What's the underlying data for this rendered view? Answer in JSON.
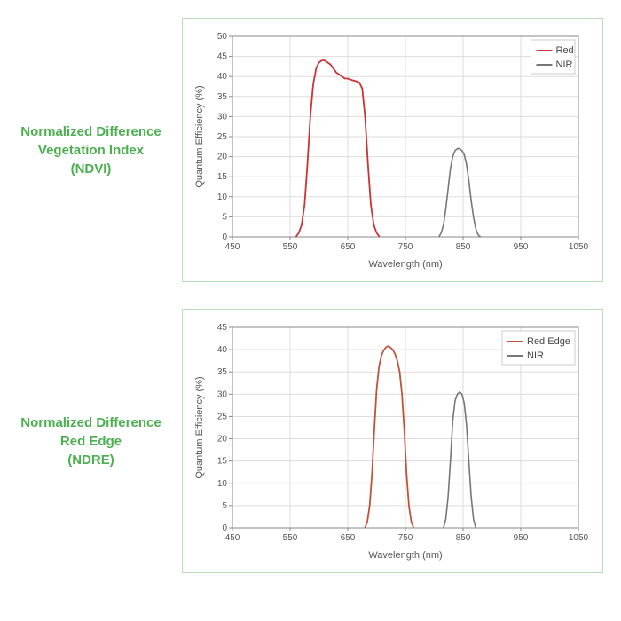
{
  "charts": [
    {
      "label_lines": [
        "Normalized Difference",
        "Vegetation Index",
        "(NDVI)"
      ],
      "label_color": "#4caf50",
      "border_color": "#b7e0b7",
      "background_color": "#ffffff",
      "xlabel": "Wavelength (nm)",
      "ylabel": "Quantum Efficiency (%)",
      "xlim": [
        450,
        1050
      ],
      "ylim": [
        0,
        50
      ],
      "xtick_step": 100,
      "ytick_step": 5,
      "grid_color": "#dddddd",
      "axis_color": "#888888",
      "tick_font_size": 10,
      "axis_title_font_size": 11,
      "legend": {
        "items": [
          {
            "name": "Red",
            "color": "#cc3333"
          },
          {
            "name": "NIR",
            "color": "#777777"
          }
        ]
      },
      "series": [
        {
          "name": "Red",
          "color": "#cc3333",
          "line_width": 1.8,
          "points": [
            [
              560,
              0
            ],
            [
              565,
              1
            ],
            [
              570,
              3
            ],
            [
              575,
              8
            ],
            [
              580,
              18
            ],
            [
              585,
              30
            ],
            [
              590,
              38
            ],
            [
              595,
              42
            ],
            [
              600,
              43.5
            ],
            [
              605,
              44
            ],
            [
              610,
              44
            ],
            [
              615,
              43.5
            ],
            [
              620,
              43
            ],
            [
              625,
              42
            ],
            [
              630,
              41
            ],
            [
              635,
              40.5
            ],
            [
              640,
              40
            ],
            [
              645,
              39.5
            ],
            [
              650,
              39.5
            ],
            [
              655,
              39.2
            ],
            [
              660,
              39
            ],
            [
              665,
              38.8
            ],
            [
              670,
              38.5
            ],
            [
              675,
              37
            ],
            [
              680,
              30
            ],
            [
              685,
              18
            ],
            [
              690,
              8
            ],
            [
              695,
              3
            ],
            [
              700,
              1
            ],
            [
              705,
              0
            ]
          ]
        },
        {
          "name": "NIR",
          "color": "#777777",
          "line_width": 1.6,
          "points": [
            [
              808,
              0
            ],
            [
              812,
              1
            ],
            [
              816,
              3
            ],
            [
              820,
              7
            ],
            [
              824,
              12
            ],
            [
              828,
              17
            ],
            [
              832,
              20
            ],
            [
              836,
              21.5
            ],
            [
              840,
              22
            ],
            [
              844,
              22
            ],
            [
              848,
              21.5
            ],
            [
              852,
              20.5
            ],
            [
              856,
              18
            ],
            [
              860,
              14
            ],
            [
              864,
              9
            ],
            [
              868,
              5
            ],
            [
              872,
              2
            ],
            [
              876,
              0.5
            ],
            [
              880,
              0
            ]
          ]
        }
      ]
    },
    {
      "label_lines": [
        "Normalized Difference",
        "Red Edge",
        "(NDRE)"
      ],
      "label_color": "#4caf50",
      "border_color": "#b7e0b7",
      "background_color": "#ffffff",
      "xlabel": "Wavelength (nm)",
      "ylabel": "Quantum Efficiency (%)",
      "xlim": [
        450,
        1050
      ],
      "ylim": [
        0,
        45
      ],
      "xtick_step": 100,
      "ytick_step": 5,
      "grid_color": "#dddddd",
      "axis_color": "#888888",
      "tick_font_size": 10,
      "axis_title_font_size": 11,
      "legend": {
        "items": [
          {
            "name": "Red Edge",
            "color": "#c0543a"
          },
          {
            "name": "NIR",
            "color": "#777777"
          }
        ]
      },
      "series": [
        {
          "name": "Red Edge",
          "color": "#c0543a",
          "line_width": 1.8,
          "points": [
            [
              680,
              0
            ],
            [
              684,
              1.5
            ],
            [
              688,
              5
            ],
            [
              692,
              12
            ],
            [
              696,
              22
            ],
            [
              700,
              31
            ],
            [
              704,
              36
            ],
            [
              708,
              38.5
            ],
            [
              712,
              39.8
            ],
            [
              716,
              40.5
            ],
            [
              720,
              40.8
            ],
            [
              724,
              40.5
            ],
            [
              728,
              40
            ],
            [
              732,
              39
            ],
            [
              736,
              37.5
            ],
            [
              740,
              35
            ],
            [
              744,
              30
            ],
            [
              748,
              22
            ],
            [
              752,
              12
            ],
            [
              756,
              5
            ],
            [
              760,
              1.5
            ],
            [
              764,
              0
            ]
          ]
        },
        {
          "name": "NIR",
          "color": "#777777",
          "line_width": 1.6,
          "points": [
            [
              816,
              0
            ],
            [
              820,
              2
            ],
            [
              824,
              7
            ],
            [
              828,
              15
            ],
            [
              832,
              24
            ],
            [
              836,
              28.5
            ],
            [
              840,
              30
            ],
            [
              844,
              30.5
            ],
            [
              848,
              30
            ],
            [
              852,
              28
            ],
            [
              856,
              23
            ],
            [
              860,
              15
            ],
            [
              864,
              7
            ],
            [
              868,
              2
            ],
            [
              872,
              0
            ]
          ]
        }
      ]
    }
  ]
}
